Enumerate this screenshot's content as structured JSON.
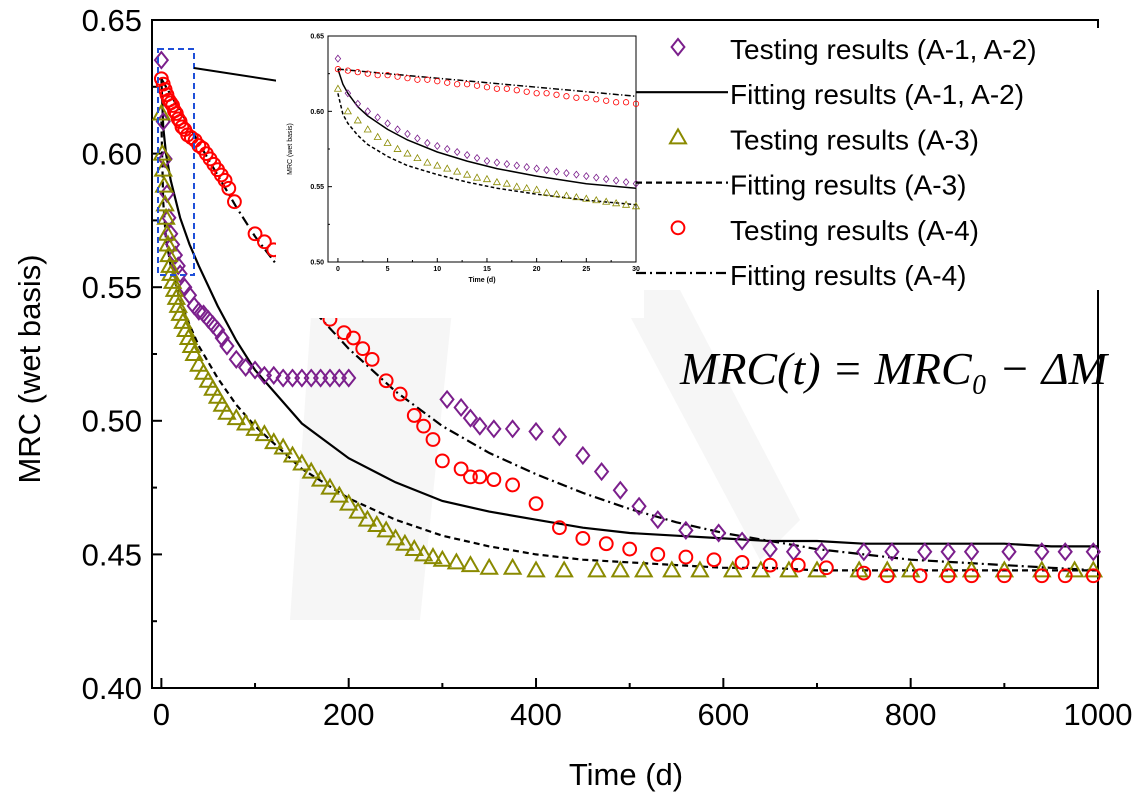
{
  "chart_data": [
    {
      "type": "scatter",
      "title": "",
      "xlabel": "Time (d)",
      "ylabel": "MRC (wet basis)",
      "xlim": [
        -10,
        1000
      ],
      "ylim": [
        0.4,
        0.65
      ],
      "xticks": [
        "0",
        "200",
        "400",
        "600",
        "800",
        "1000"
      ],
      "yticks": [
        "0.40",
        "0.45",
        "0.50",
        "0.55",
        "0.60",
        "0.65"
      ],
      "equation": "MRC(t) = MRC₀ − ΔM",
      "legend_position": "top-right",
      "legend": [
        "Testing results (A-1, A-2)",
        "Fitting results (A-1, A-2)",
        "Testing results (A-3)",
        "Fitting results (A-3)",
        "Testing results (A-4)",
        "Fitting results (A-4)"
      ],
      "series": [
        {
          "name": "Testing results (A-1, A-2)",
          "marker": "diamond",
          "color": "#7b1f8c",
          "x": [
            0,
            2,
            4,
            6,
            8,
            10,
            12,
            15,
            18,
            20,
            25,
            30,
            35,
            40,
            45,
            50,
            55,
            60,
            65,
            70,
            80,
            90,
            100,
            110,
            120,
            130,
            140,
            150,
            160,
            170,
            180,
            190,
            200,
            305,
            320,
            330,
            340,
            355,
            375,
            400,
            425,
            450,
            470,
            490,
            510,
            530,
            560,
            595,
            620,
            650,
            675,
            705,
            750,
            780,
            815,
            840,
            865,
            905,
            940,
            965,
            995
          ],
          "y": [
            0.635,
            0.612,
            0.598,
            0.585,
            0.576,
            0.57,
            0.566,
            0.562,
            0.558,
            0.555,
            0.55,
            0.547,
            0.543,
            0.541,
            0.54,
            0.538,
            0.536,
            0.534,
            0.531,
            0.528,
            0.523,
            0.52,
            0.519,
            0.517,
            0.517,
            0.516,
            0.516,
            0.516,
            0.516,
            0.516,
            0.516,
            0.516,
            0.516,
            0.508,
            0.505,
            0.501,
            0.498,
            0.497,
            0.497,
            0.496,
            0.494,
            0.487,
            0.481,
            0.474,
            0.468,
            0.463,
            0.459,
            0.458,
            0.455,
            0.452,
            0.451,
            0.451,
            0.451,
            0.451,
            0.451,
            0.451,
            0.451,
            0.451,
            0.451,
            0.451,
            0.451
          ]
        },
        {
          "name": "Fitting results (A-1, A-2)",
          "line": "solid",
          "color": "#000000",
          "x": [
            0,
            2,
            5,
            10,
            20,
            30,
            40,
            60,
            80,
            100,
            150,
            200,
            250,
            300,
            350,
            400,
            450,
            500,
            550,
            600,
            650,
            700,
            750,
            800,
            850,
            900,
            950,
            1000
          ],
          "y": [
            0.628,
            0.61,
            0.6,
            0.59,
            0.576,
            0.566,
            0.558,
            0.543,
            0.53,
            0.519,
            0.499,
            0.486,
            0.477,
            0.47,
            0.466,
            0.463,
            0.46,
            0.458,
            0.457,
            0.456,
            0.455,
            0.455,
            0.454,
            0.454,
            0.454,
            0.454,
            0.453,
            0.453
          ]
        },
        {
          "name": "Testing results (A-3)",
          "marker": "triangle",
          "color": "#8a8a00",
          "x": [
            0,
            1,
            2,
            3,
            4,
            5,
            6,
            7,
            8,
            9,
            10,
            12,
            14,
            16,
            18,
            20,
            23,
            26,
            29,
            32,
            35,
            40,
            45,
            50,
            55,
            60,
            65,
            70,
            80,
            90,
            100,
            110,
            120,
            130,
            140,
            150,
            160,
            170,
            180,
            190,
            200,
            210,
            220,
            230,
            240,
            250,
            260,
            270,
            280,
            290,
            300,
            315,
            330,
            350,
            375,
            400,
            430,
            465,
            490,
            515,
            545,
            575,
            610,
            640,
            670,
            700,
            745,
            775,
            800,
            840,
            865,
            900,
            940,
            975,
            995
          ],
          "y": [
            0.615,
            0.6,
            0.594,
            0.588,
            0.581,
            0.576,
            0.57,
            0.566,
            0.562,
            0.558,
            0.555,
            0.552,
            0.549,
            0.546,
            0.543,
            0.54,
            0.537,
            0.534,
            0.531,
            0.528,
            0.525,
            0.521,
            0.518,
            0.515,
            0.512,
            0.509,
            0.506,
            0.503,
            0.501,
            0.499,
            0.497,
            0.495,
            0.492,
            0.49,
            0.487,
            0.484,
            0.481,
            0.478,
            0.475,
            0.472,
            0.469,
            0.466,
            0.463,
            0.461,
            0.459,
            0.456,
            0.454,
            0.452,
            0.45,
            0.449,
            0.448,
            0.447,
            0.446,
            0.445,
            0.445,
            0.444,
            0.444,
            0.444,
            0.444,
            0.444,
            0.444,
            0.444,
            0.444,
            0.444,
            0.444,
            0.444,
            0.444,
            0.444,
            0.444,
            0.444,
            0.444,
            0.444,
            0.444,
            0.444,
            0.444
          ]
        },
        {
          "name": "Fitting results (A-3)",
          "line": "dashed",
          "color": "#000000",
          "x": [
            0,
            2,
            5,
            10,
            20,
            30,
            40,
            60,
            80,
            100,
            150,
            200,
            250,
            300,
            350,
            400,
            450,
            500,
            550,
            600,
            650,
            700,
            750,
            800,
            850,
            900,
            950,
            1000
          ],
          "y": [
            0.612,
            0.582,
            0.568,
            0.558,
            0.545,
            0.536,
            0.528,
            0.516,
            0.506,
            0.498,
            0.482,
            0.471,
            0.463,
            0.457,
            0.453,
            0.45,
            0.448,
            0.447,
            0.446,
            0.445,
            0.445,
            0.444,
            0.444,
            0.444,
            0.444,
            0.444,
            0.444,
            0.444
          ]
        },
        {
          "name": "Testing results (A-4)",
          "marker": "circle",
          "color": "#ff0000",
          "x": [
            0,
            2,
            4,
            6,
            8,
            10,
            12,
            14,
            16,
            18,
            20,
            22,
            25,
            28,
            32,
            36,
            40,
            44,
            48,
            52,
            56,
            60,
            64,
            68,
            72,
            78,
            100,
            110,
            120,
            130,
            140,
            150,
            165,
            180,
            195,
            205,
            215,
            225,
            240,
            255,
            270,
            280,
            290,
            300,
            320,
            330,
            340,
            355,
            375,
            400,
            425,
            450,
            475,
            500,
            530,
            560,
            590,
            620,
            650,
            680,
            710,
            750,
            775,
            810,
            840,
            865,
            900,
            940,
            965,
            995
          ],
          "y": [
            0.628,
            0.626,
            0.624,
            0.622,
            0.62,
            0.619,
            0.618,
            0.616,
            0.615,
            0.613,
            0.612,
            0.61,
            0.609,
            0.607,
            0.606,
            0.605,
            0.603,
            0.602,
            0.6,
            0.598,
            0.596,
            0.594,
            0.592,
            0.59,
            0.587,
            0.582,
            0.57,
            0.567,
            0.564,
            0.561,
            0.558,
            0.553,
            0.548,
            0.538,
            0.533,
            0.531,
            0.527,
            0.523,
            0.515,
            0.51,
            0.502,
            0.498,
            0.493,
            0.485,
            0.482,
            0.479,
            0.479,
            0.478,
            0.476,
            0.469,
            0.46,
            0.456,
            0.454,
            0.452,
            0.45,
            0.449,
            0.448,
            0.447,
            0.446,
            0.446,
            0.445,
            0.443,
            0.442,
            0.442,
            0.442,
            0.442,
            0.442,
            0.442,
            0.442,
            0.442
          ]
        },
        {
          "name": "Fitting results (A-4)",
          "line": "dashdot",
          "color": "#000000",
          "x": [
            0,
            5,
            10,
            20,
            30,
            40,
            60,
            80,
            100,
            150,
            200,
            250,
            300,
            350,
            400,
            450,
            500,
            550,
            600,
            650,
            700,
            750,
            800,
            850,
            900,
            950,
            1000
          ],
          "y": [
            0.628,
            0.625,
            0.622,
            0.616,
            0.61,
            0.604,
            0.592,
            0.58,
            0.569,
            0.546,
            0.527,
            0.511,
            0.498,
            0.488,
            0.48,
            0.473,
            0.467,
            0.462,
            0.458,
            0.455,
            0.452,
            0.45,
            0.448,
            0.447,
            0.446,
            0.445,
            0.444
          ]
        }
      ]
    },
    {
      "type": "scatter",
      "title": "",
      "xlabel": "Time (d)",
      "ylabel": "MRC (wet basis)",
      "xlim": [
        -1,
        30
      ],
      "ylim": [
        0.5,
        0.65
      ],
      "xticks": [
        "0",
        "5",
        "10",
        "15",
        "20",
        "25",
        "30"
      ],
      "yticks": [
        "0.50",
        "0.55",
        "0.60",
        "0.65"
      ],
      "series": [
        {
          "name": "Testing results (A-1, A-2)",
          "marker": "diamond",
          "color": "#7b1f8c",
          "x": [
            0,
            1,
            2,
            3,
            4,
            5,
            6,
            7,
            8,
            9,
            10,
            11,
            12,
            13,
            14,
            15,
            16,
            17,
            18,
            19,
            20,
            21,
            22,
            23,
            24,
            25,
            26,
            27,
            28,
            29,
            30
          ],
          "y": [
            0.635,
            0.612,
            0.605,
            0.6,
            0.596,
            0.592,
            0.588,
            0.585,
            0.582,
            0.579,
            0.577,
            0.575,
            0.573,
            0.571,
            0.569,
            0.567,
            0.566,
            0.565,
            0.564,
            0.563,
            0.562,
            0.561,
            0.56,
            0.559,
            0.558,
            0.557,
            0.556,
            0.555,
            0.554,
            0.553,
            0.552
          ]
        },
        {
          "name": "Fitting results (A-1, A-2)",
          "line": "solid",
          "color": "#000000",
          "x": [
            0,
            0.5,
            1,
            2,
            3,
            5,
            7,
            10,
            13,
            16,
            20,
            25,
            30
          ],
          "y": [
            0.628,
            0.618,
            0.612,
            0.603,
            0.597,
            0.588,
            0.581,
            0.573,
            0.567,
            0.562,
            0.557,
            0.552,
            0.549
          ]
        },
        {
          "name": "Testing results (A-3)",
          "marker": "triangle",
          "color": "#8a8a00",
          "x": [
            0,
            1,
            2,
            3,
            4,
            5,
            6,
            7,
            8,
            9,
            10,
            11,
            12,
            13,
            14,
            15,
            16,
            17,
            18,
            19,
            20,
            21,
            22,
            23,
            24,
            25,
            26,
            27,
            28,
            29,
            30
          ],
          "y": [
            0.615,
            0.6,
            0.594,
            0.588,
            0.583,
            0.579,
            0.575,
            0.572,
            0.569,
            0.566,
            0.564,
            0.562,
            0.56,
            0.558,
            0.556,
            0.555,
            0.553,
            0.552,
            0.55,
            0.549,
            0.548,
            0.546,
            0.545,
            0.544,
            0.543,
            0.542,
            0.541,
            0.54,
            0.539,
            0.538,
            0.537
          ]
        },
        {
          "name": "Fitting results (A-3)",
          "line": "dashed",
          "color": "#000000",
          "x": [
            0,
            0.5,
            1,
            2,
            3,
            5,
            7,
            10,
            13,
            16,
            20,
            25,
            30
          ],
          "y": [
            0.612,
            0.598,
            0.592,
            0.584,
            0.578,
            0.57,
            0.564,
            0.558,
            0.553,
            0.549,
            0.545,
            0.541,
            0.538
          ]
        },
        {
          "name": "Testing results (A-4)",
          "marker": "circle",
          "color": "#ff0000",
          "x": [
            0,
            1,
            2,
            3,
            4,
            5,
            6,
            7,
            8,
            9,
            10,
            11,
            12,
            13,
            14,
            15,
            16,
            17,
            18,
            19,
            20,
            21,
            22,
            23,
            24,
            25,
            26,
            27,
            28,
            29,
            30
          ],
          "y": [
            0.628,
            0.627,
            0.626,
            0.625,
            0.624,
            0.624,
            0.623,
            0.622,
            0.621,
            0.621,
            0.62,
            0.619,
            0.618,
            0.618,
            0.617,
            0.616,
            0.615,
            0.615,
            0.614,
            0.613,
            0.612,
            0.612,
            0.611,
            0.61,
            0.609,
            0.609,
            0.608,
            0.607,
            0.606,
            0.606,
            0.605
          ]
        },
        {
          "name": "Fitting results (A-4)",
          "line": "dashdot",
          "color": "#000000",
          "x": [
            0,
            5,
            10,
            15,
            20,
            25,
            30
          ],
          "y": [
            0.628,
            0.625,
            0.622,
            0.619,
            0.616,
            0.613,
            0.61
          ]
        }
      ]
    }
  ]
}
